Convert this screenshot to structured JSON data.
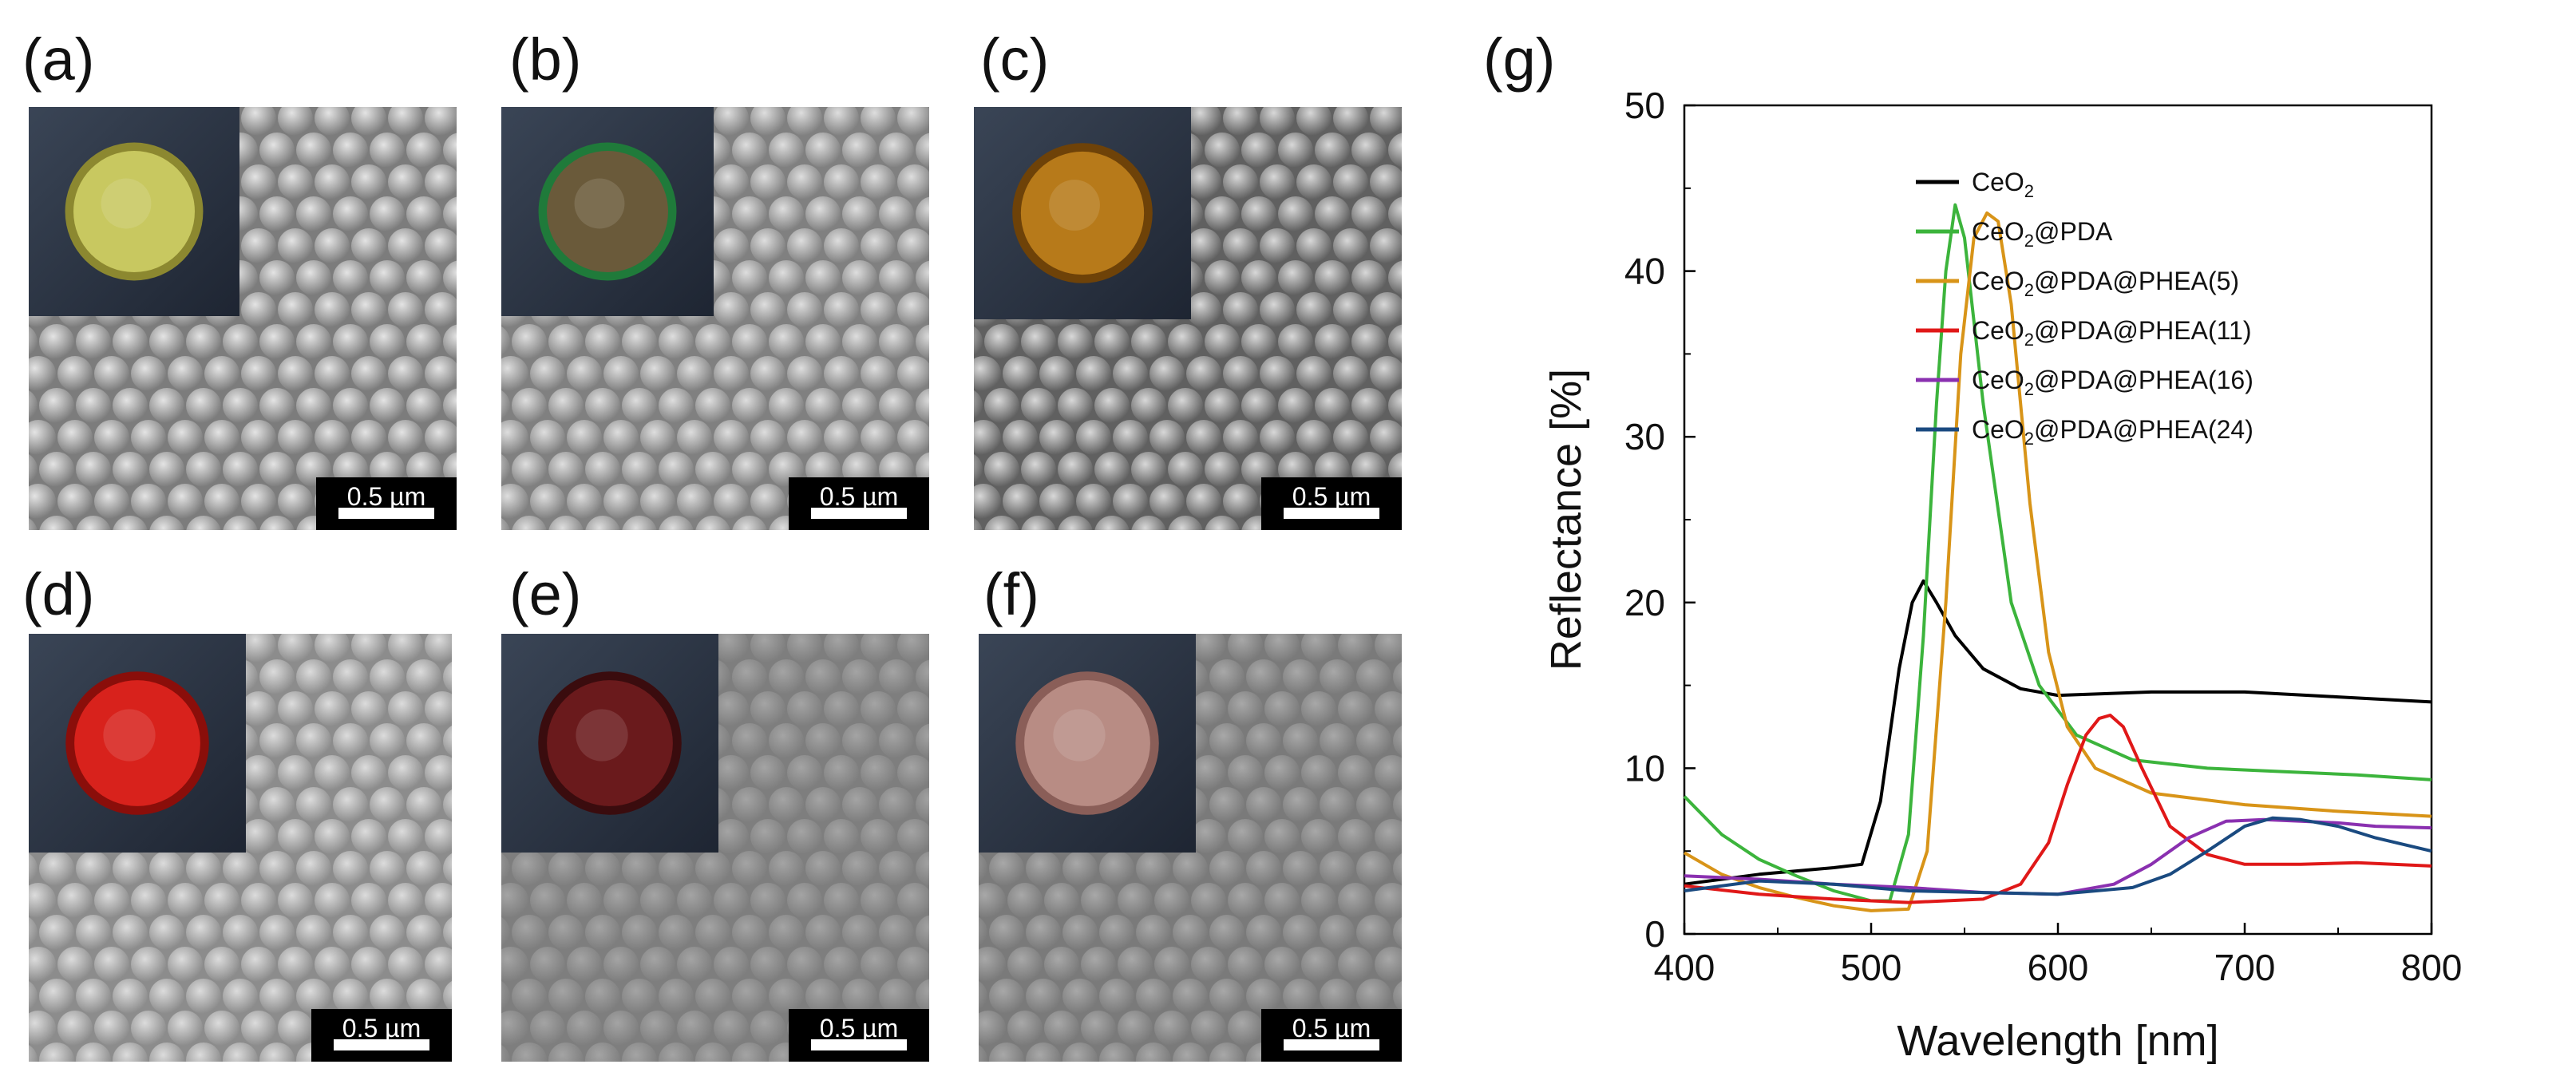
{
  "panels": [
    {
      "label": "(a)",
      "scale": "0.5 µm",
      "inset_color": "#c8c860",
      "inset_shadow": "#8c8830",
      "sphere_light": "#e4e4e4",
      "sphere_dark": "#7c7c7c"
    },
    {
      "label": "(b)",
      "scale": "0.5 µm",
      "inset_color": "#6a5a3a",
      "inset_shadow": "#1f7a3a",
      "sphere_light": "#dedede",
      "sphere_dark": "#808080"
    },
    {
      "label": "(c)",
      "scale": "0.5 µm",
      "inset_color": "#b77a1a",
      "inset_shadow": "#6e4208",
      "sphere_light": "#d8d8d8",
      "sphere_dark": "#606060"
    },
    {
      "label": "(d)",
      "scale": "0.5 µm",
      "inset_color": "#d8221c",
      "inset_shadow": "#8a0e0a",
      "sphere_light": "#dcdcdc",
      "sphere_dark": "#8c8c8c"
    },
    {
      "label": "(e)",
      "scale": "0.5 µm",
      "inset_color": "#6a1a1c",
      "inset_shadow": "#3a0c0e",
      "sphere_light": "#a4a4a4",
      "sphere_dark": "#7e7e7e"
    },
    {
      "label": "(f)",
      "scale": "0.5 µm",
      "inset_color": "#b88c84",
      "inset_shadow": "#8a5e58",
      "sphere_light": "#a8a8a8",
      "sphere_dark": "#7a7a7a"
    }
  ],
  "chart_label": "(g)",
  "chart_data": {
    "type": "line",
    "title": "",
    "xlabel": "Wavelength [nm]",
    "ylabel": "Reflectance [%]",
    "xlim": [
      400,
      800
    ],
    "ylim": [
      0,
      50
    ],
    "xticks": [
      400,
      500,
      600,
      700,
      800
    ],
    "yticks": [
      0,
      10,
      20,
      30,
      40,
      50
    ],
    "grid": false,
    "legend_position": "top-right",
    "series": [
      {
        "name": "CeO",
        "sub": "2",
        "rest": "",
        "color": "#000000",
        "x": [
          400,
          420,
          440,
          460,
          480,
          495,
          505,
          515,
          522,
          528,
          535,
          545,
          560,
          580,
          600,
          650,
          700,
          750,
          800
        ],
        "y": [
          3.0,
          3.3,
          3.6,
          3.8,
          4.0,
          4.2,
          8.0,
          16.0,
          20.0,
          21.3,
          20.0,
          18.0,
          16.0,
          14.8,
          14.4,
          14.6,
          14.6,
          14.3,
          14.0
        ]
      },
      {
        "name": "CeO",
        "sub": "2",
        "rest": "@PDA",
        "color": "#3cb43c",
        "x": [
          400,
          420,
          440,
          460,
          480,
          500,
          510,
          520,
          528,
          535,
          540,
          545,
          550,
          560,
          575,
          590,
          610,
          640,
          680,
          720,
          760,
          800
        ],
        "y": [
          8.3,
          6.0,
          4.5,
          3.5,
          2.6,
          2.0,
          2.0,
          6.0,
          18.0,
          32.0,
          40.0,
          44.0,
          42.0,
          32.0,
          20.0,
          15.0,
          12.0,
          10.5,
          10.0,
          9.8,
          9.6,
          9.3
        ]
      },
      {
        "name": "CeO",
        "sub": "2",
        "rest": "@PDA@PHEA(5)",
        "color": "#d89418",
        "x": [
          400,
          420,
          440,
          460,
          480,
          500,
          520,
          530,
          540,
          548,
          555,
          562,
          568,
          575,
          585,
          595,
          605,
          620,
          650,
          700,
          750,
          800
        ],
        "y": [
          4.9,
          3.6,
          2.8,
          2.2,
          1.7,
          1.4,
          1.5,
          5.0,
          20.0,
          35.0,
          42.0,
          43.5,
          43.0,
          38.0,
          26.0,
          17.0,
          12.5,
          10.0,
          8.5,
          7.8,
          7.4,
          7.1
        ]
      },
      {
        "name": "CeO",
        "sub": "2",
        "rest": "@PDA@PHEA(11)",
        "color": "#e01818",
        "x": [
          400,
          440,
          480,
          520,
          560,
          580,
          595,
          605,
          615,
          622,
          628,
          635,
          645,
          660,
          680,
          700,
          730,
          760,
          800
        ],
        "y": [
          2.9,
          2.4,
          2.1,
          1.9,
          2.1,
          3.0,
          5.5,
          9.0,
          12.0,
          13.0,
          13.2,
          12.5,
          10.0,
          6.5,
          4.8,
          4.2,
          4.2,
          4.3,
          4.1
        ]
      },
      {
        "name": "CeO",
        "sub": "2",
        "rest": "@PDA@PHEA(16)",
        "color": "#8a30b0",
        "x": [
          400,
          440,
          480,
          520,
          560,
          600,
          630,
          650,
          670,
          690,
          710,
          730,
          750,
          770,
          800
        ],
        "y": [
          3.5,
          3.3,
          3.0,
          2.8,
          2.5,
          2.4,
          3.0,
          4.2,
          5.8,
          6.8,
          6.9,
          6.8,
          6.7,
          6.5,
          6.4
        ]
      },
      {
        "name": "CeO",
        "sub": "2",
        "rest": "@PDA@PHEA(24)",
        "color": "#1a4a80",
        "x": [
          400,
          440,
          480,
          520,
          560,
          600,
          640,
          660,
          680,
          700,
          715,
          730,
          750,
          770,
          800
        ],
        "y": [
          2.6,
          3.2,
          3.0,
          2.6,
          2.5,
          2.4,
          2.8,
          3.6,
          5.0,
          6.5,
          7.0,
          6.9,
          6.5,
          5.8,
          5.0
        ]
      }
    ]
  }
}
